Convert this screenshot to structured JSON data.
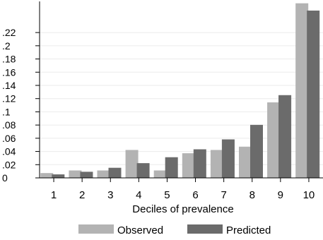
{
  "chart_data": {
    "type": "bar",
    "title": "",
    "xlabel": "Deciles of prevalence",
    "ylabel": "",
    "categories": [
      "1",
      "2",
      "3",
      "4",
      "5",
      "6",
      "7",
      "8",
      "9",
      "10"
    ],
    "y_ticks": [
      {
        "value": 0,
        "label": "0"
      },
      {
        "value": 0.02,
        "label": ".02"
      },
      {
        "value": 0.04,
        "label": ".04"
      },
      {
        "value": 0.06,
        "label": ".06"
      },
      {
        "value": 0.08,
        "label": ".08"
      },
      {
        "value": 0.1,
        "label": ".1"
      },
      {
        "value": 0.12,
        "label": ".12"
      },
      {
        "value": 0.14,
        "label": ".14"
      },
      {
        "value": 0.16,
        "label": ".16"
      },
      {
        "value": 0.18,
        "label": ".18"
      },
      {
        "value": 0.2,
        "label": ".2"
      },
      {
        "value": 0.22,
        "label": ".22"
      }
    ],
    "ylim": [
      0,
      0.265
    ],
    "series": [
      {
        "name": "Observed",
        "color": "#b3b3b3",
        "values": [
          0.007,
          0.011,
          0.011,
          0.042,
          0.011,
          0.037,
          0.042,
          0.047,
          0.114,
          0.264
        ]
      },
      {
        "name": "Predicted",
        "color": "#6b6b6b",
        "values": [
          0.005,
          0.009,
          0.015,
          0.022,
          0.031,
          0.043,
          0.058,
          0.08,
          0.125,
          0.253
        ]
      }
    ],
    "grid": true,
    "legend_position": "bottom"
  }
}
